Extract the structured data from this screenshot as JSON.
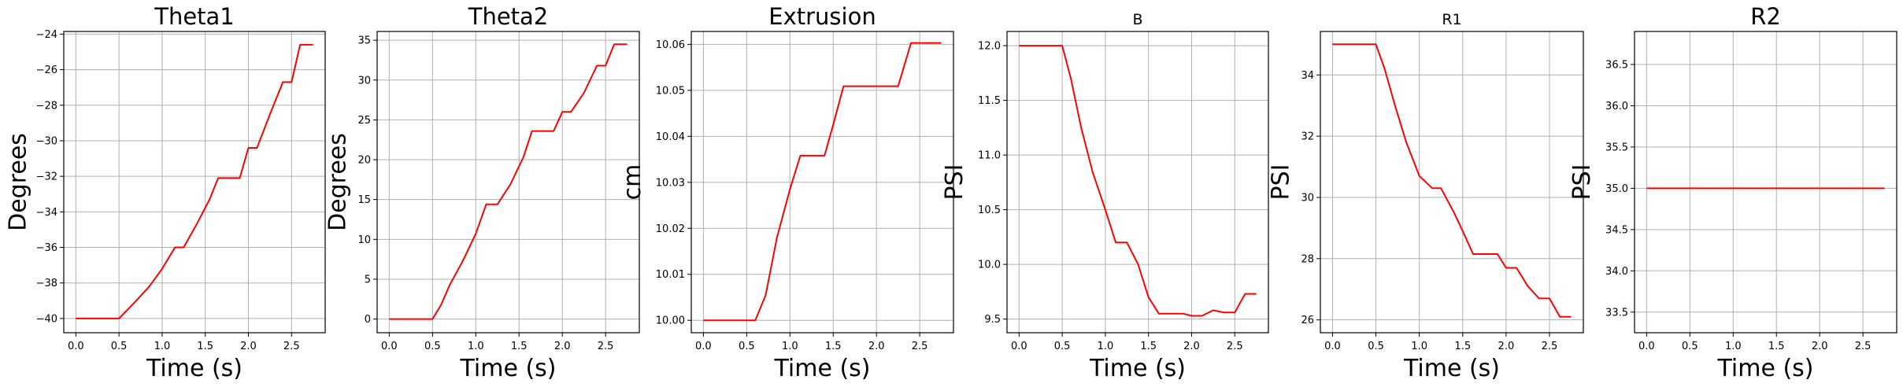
{
  "chart_data": [
    {
      "type": "line",
      "title": "Theta1",
      "title_size": "large",
      "xlabel": "Time (s)",
      "ylabel": "Degrees",
      "xlim": [
        -0.14,
        2.89
      ],
      "ylim": [
        -40.8,
        -23.85
      ],
      "xticks": [
        0.0,
        0.5,
        1.0,
        1.5,
        2.0,
        2.5
      ],
      "xtick_labels": [
        "0.0",
        "0.5",
        "1.0",
        "1.5",
        "2.0",
        "2.5"
      ],
      "yticks": [
        -40,
        -38,
        -36,
        -34,
        -32,
        -30,
        -28,
        -26,
        -24
      ],
      "ytick_labels": [
        "−40",
        "−38",
        "−36",
        "−34",
        "−32",
        "−30",
        "−28",
        "−26",
        "−24"
      ],
      "grid": true,
      "color": "#ff0000",
      "x": [
        0.0,
        0.5,
        0.7,
        0.85,
        1.0,
        1.15,
        1.25,
        1.4,
        1.55,
        1.65,
        1.9,
        2.0,
        2.1,
        2.25,
        2.4,
        2.5,
        2.6,
        2.75
      ],
      "y": [
        -40.0,
        -40.0,
        -39.0,
        -38.2,
        -37.2,
        -36.0,
        -36.0,
        -34.7,
        -33.3,
        -32.1,
        -32.1,
        -30.4,
        -30.4,
        -28.5,
        -26.7,
        -26.7,
        -24.6,
        -24.6
      ]
    },
    {
      "type": "line",
      "title": "Theta2",
      "title_size": "large",
      "xlabel": "Time (s)",
      "ylabel": "Degrees",
      "xlim": [
        -0.14,
        2.89
      ],
      "ylim": [
        -1.72,
        36.1
      ],
      "xticks": [
        0.0,
        0.5,
        1.0,
        1.5,
        2.0,
        2.5
      ],
      "xtick_labels": [
        "0.0",
        "0.5",
        "1.0",
        "1.5",
        "2.0",
        "2.5"
      ],
      "yticks": [
        0,
        5,
        10,
        15,
        20,
        25,
        30,
        35
      ],
      "ytick_labels": [
        "0",
        "5",
        "10",
        "15",
        "20",
        "25",
        "30",
        "35"
      ],
      "grid": true,
      "color": "#ff0000",
      "x": [
        0.0,
        0.5,
        0.6,
        0.7,
        0.85,
        1.0,
        1.12,
        1.25,
        1.4,
        1.55,
        1.65,
        1.9,
        2.0,
        2.1,
        2.25,
        2.4,
        2.5,
        2.6,
        2.75
      ],
      "y": [
        0.0,
        0.0,
        1.8,
        4.3,
        7.3,
        10.7,
        14.4,
        14.4,
        16.9,
        20.3,
        23.6,
        23.6,
        26.0,
        26.0,
        28.4,
        31.8,
        31.8,
        34.5,
        34.5
      ]
    },
    {
      "type": "line",
      "title": "Extrusion",
      "title_size": "large",
      "xlabel": "Time (s)",
      "ylabel": "cm",
      "xlim": [
        -0.14,
        2.89
      ],
      "ylim": [
        9.9973,
        10.0628
      ],
      "xticks": [
        0.0,
        0.5,
        1.0,
        1.5,
        2.0,
        2.5
      ],
      "xtick_labels": [
        "0.0",
        "0.5",
        "1.0",
        "1.5",
        "2.0",
        "2.5"
      ],
      "yticks": [
        10.0,
        10.01,
        10.02,
        10.03,
        10.04,
        10.05,
        10.06
      ],
      "ytick_labels": [
        "10.00",
        "10.01",
        "10.02",
        "10.03",
        "10.04",
        "10.05",
        "10.06"
      ],
      "grid": true,
      "color": "#ff0000",
      "x": [
        0.0,
        0.6,
        0.72,
        0.85,
        1.0,
        1.12,
        1.25,
        1.4,
        1.5,
        1.62,
        1.75,
        1.9,
        2.0,
        2.25,
        2.4,
        2.75
      ],
      "y": [
        10.0,
        10.0,
        10.0055,
        10.018,
        10.0285,
        10.0358,
        10.0358,
        10.0358,
        10.0425,
        10.0509,
        10.0509,
        10.0509,
        10.0509,
        10.0509,
        10.0603,
        10.0603
      ]
    },
    {
      "type": "line",
      "title": "B",
      "title_size": "small",
      "xlabel": "Time (s)",
      "ylabel": "PSI",
      "xlim": [
        -0.14,
        2.89
      ],
      "ylim": [
        9.375,
        12.13
      ],
      "xticks": [
        0.0,
        0.5,
        1.0,
        1.5,
        2.0,
        2.5
      ],
      "xtick_labels": [
        "0.0",
        "0.5",
        "1.0",
        "1.5",
        "2.0",
        "2.5"
      ],
      "yticks": [
        9.5,
        10.0,
        10.5,
        11.0,
        11.5,
        12.0
      ],
      "ytick_labels": [
        "9.5",
        "10.0",
        "10.5",
        "11.0",
        "11.5",
        "12.0"
      ],
      "grid": true,
      "color": "#ff0000",
      "x": [
        0.0,
        0.5,
        0.6,
        0.72,
        0.85,
        1.0,
        1.12,
        1.25,
        1.38,
        1.5,
        1.62,
        1.75,
        1.9,
        2.0,
        2.12,
        2.25,
        2.38,
        2.5,
        2.62,
        2.75
      ],
      "y": [
        12.0,
        12.0,
        11.7,
        11.25,
        10.85,
        10.5,
        10.2,
        10.2,
        10.0,
        9.7,
        9.55,
        9.55,
        9.55,
        9.53,
        9.53,
        9.58,
        9.56,
        9.56,
        9.73,
        9.73
      ]
    },
    {
      "type": "line",
      "title": "R1",
      "title_size": "small",
      "xlabel": "Time (s)",
      "ylabel": "PSI",
      "xlim": [
        -0.14,
        2.89
      ],
      "ylim": [
        25.58,
        35.42
      ],
      "xticks": [
        0.0,
        0.5,
        1.0,
        1.5,
        2.0,
        2.5
      ],
      "xtick_labels": [
        "0.0",
        "0.5",
        "1.0",
        "1.5",
        "2.0",
        "2.5"
      ],
      "yticks": [
        26,
        28,
        30,
        32,
        34
      ],
      "ytick_labels": [
        "26",
        "28",
        "30",
        "32",
        "34"
      ],
      "grid": true,
      "color": "#ff0000",
      "x": [
        0.0,
        0.5,
        0.6,
        0.72,
        0.85,
        1.0,
        1.15,
        1.25,
        1.4,
        1.5,
        1.62,
        1.9,
        2.0,
        2.12,
        2.25,
        2.38,
        2.5,
        2.62,
        2.75
      ],
      "y": [
        35.0,
        35.0,
        34.2,
        33.0,
        31.8,
        30.7,
        30.3,
        30.3,
        29.5,
        28.9,
        28.15,
        28.15,
        27.7,
        27.7,
        27.1,
        26.7,
        26.7,
        26.1,
        26.1
      ]
    },
    {
      "type": "line",
      "title": "R2",
      "title_size": "large",
      "xlabel": "Time (s)",
      "ylabel": "PSI",
      "xlim": [
        -0.14,
        2.89
      ],
      "ylim": [
        33.25,
        36.9
      ],
      "xticks": [
        0.0,
        0.5,
        1.0,
        1.5,
        2.0,
        2.5
      ],
      "xtick_labels": [
        "0.0",
        "0.5",
        "1.0",
        "1.5",
        "2.0",
        "2.5"
      ],
      "yticks": [
        33.5,
        34.0,
        34.5,
        35.0,
        35.5,
        36.0,
        36.5
      ],
      "ytick_labels": [
        "33.5",
        "34.0",
        "34.5",
        "35.0",
        "35.5",
        "36.0",
        "36.5"
      ],
      "grid": true,
      "color": "#ff0000",
      "x": [
        0.0,
        2.75
      ],
      "y": [
        35.0,
        35.0
      ]
    }
  ]
}
